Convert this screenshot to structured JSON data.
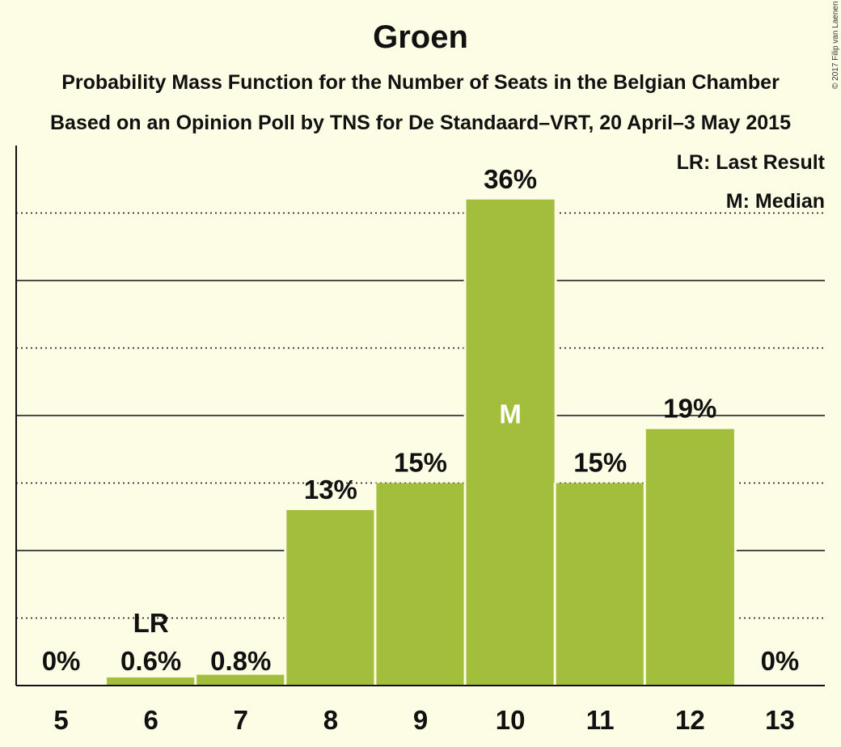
{
  "chart_data": {
    "type": "bar",
    "title": "Groen",
    "subtitle_lines": [
      "Probability Mass Function for the Number of Seats in the Belgian Chamber",
      "Based on an Opinion Poll by TNS for De Standaard–VRT, 20 April–3 May 2015"
    ],
    "categories": [
      "5",
      "6",
      "7",
      "8",
      "9",
      "10",
      "11",
      "12",
      "13"
    ],
    "values": [
      0,
      0.6,
      0.8,
      13,
      15,
      36,
      15,
      19,
      0
    ],
    "value_labels": [
      "0%",
      "0.6%",
      "0.8%",
      "13%",
      "15%",
      "36%",
      "15%",
      "19%",
      "0%"
    ],
    "last_result_category": "6",
    "median_category": "10",
    "ylim": [
      0,
      40
    ],
    "grid": true,
    "bar_color": "#a3be3d",
    "legend": {
      "placement": "top-right",
      "last_result": "LR: Last Result",
      "median": "M: Median"
    },
    "markers": {
      "last_result": "LR",
      "median": "M"
    }
  },
  "copyright": "© 2017 Filip van Laenen"
}
